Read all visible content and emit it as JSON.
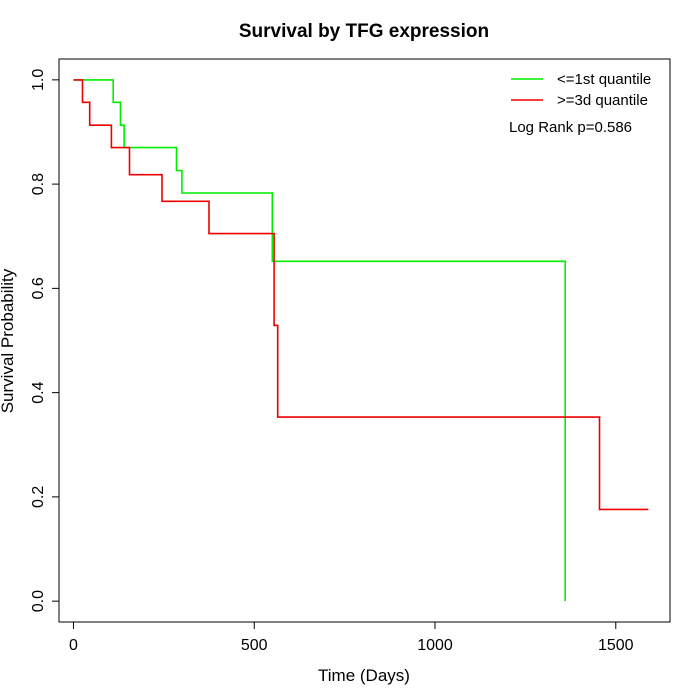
{
  "chart_data": {
    "type": "line",
    "title": "Survival by TFG expression",
    "xlabel": "Time (Days)",
    "ylabel": "Survival Probability",
    "xlim": [
      -40,
      1650
    ],
    "ylim": [
      -0.04,
      1.04
    ],
    "x_ticks": [
      0,
      500,
      1000,
      1500
    ],
    "y_ticks": [
      0.0,
      0.2,
      0.4,
      0.6,
      0.8,
      1.0
    ],
    "x_tick_labels": [
      "0",
      "500",
      "1000",
      "1500"
    ],
    "y_tick_labels": [
      "0.0",
      "0.2",
      "0.4",
      "0.6",
      "0.8",
      "1.0"
    ],
    "grid": false,
    "legend_position": "top-right",
    "annotation": "Log Rank p=0.586",
    "series": [
      {
        "name": "<=1st quantile",
        "color": "#00ee00",
        "step": true,
        "points": [
          [
            0,
            1.0
          ],
          [
            110,
            1.0
          ],
          [
            110,
            0.957
          ],
          [
            130,
            0.957
          ],
          [
            130,
            0.913
          ],
          [
            140,
            0.913
          ],
          [
            140,
            0.87
          ],
          [
            285,
            0.87
          ],
          [
            285,
            0.826
          ],
          [
            300,
            0.826
          ],
          [
            300,
            0.783
          ],
          [
            550,
            0.783
          ],
          [
            550,
            0.652
          ],
          [
            1360,
            0.652
          ],
          [
            1360,
            0.0
          ]
        ]
      },
      {
        "name": ">=3d quantile",
        "color": "#ee0000",
        "step": true,
        "points": [
          [
            0,
            1.0
          ],
          [
            25,
            1.0
          ],
          [
            25,
            0.957
          ],
          [
            45,
            0.957
          ],
          [
            45,
            0.913
          ],
          [
            105,
            0.913
          ],
          [
            105,
            0.87
          ],
          [
            155,
            0.87
          ],
          [
            155,
            0.818
          ],
          [
            245,
            0.818
          ],
          [
            245,
            0.767
          ],
          [
            375,
            0.767
          ],
          [
            375,
            0.705
          ],
          [
            555,
            0.705
          ],
          [
            555,
            0.529
          ],
          [
            565,
            0.529
          ],
          [
            565,
            0.353
          ],
          [
            1455,
            0.353
          ],
          [
            1455,
            0.176
          ],
          [
            1590,
            0.176
          ]
        ]
      }
    ]
  }
}
